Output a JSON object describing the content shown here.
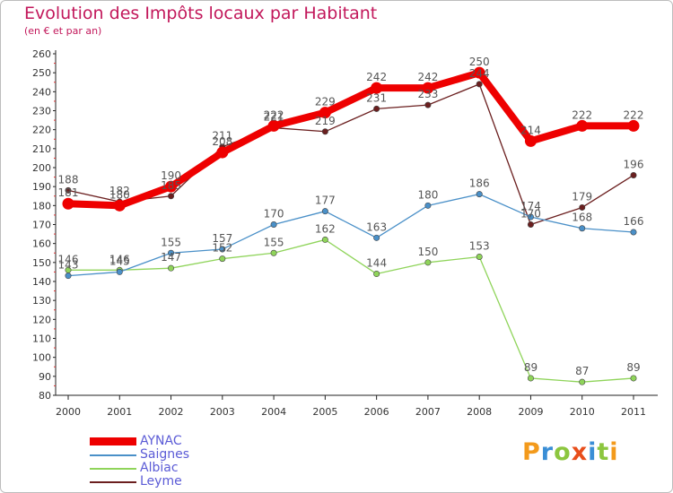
{
  "chart_data": {
    "type": "line",
    "title": "Evolution des Impôts locaux par Habitant",
    "subtitle": "(en € et par an)",
    "categories": [
      "2000",
      "2001",
      "2002",
      "2003",
      "2004",
      "2005",
      "2006",
      "2007",
      "2008",
      "2009",
      "2010",
      "2011"
    ],
    "ylim": [
      80,
      260
    ],
    "yticks": [
      "80",
      "90",
      "100",
      "110",
      "120",
      "130",
      "140",
      "150",
      "160",
      "170",
      "180",
      "190",
      "200",
      "210",
      "220",
      "230",
      "240",
      "250",
      "260"
    ],
    "grid": false,
    "legend_position": "bottom-left",
    "series": [
      {
        "name": "AYNAC",
        "values": [
          181,
          180,
          190,
          208,
          222,
          229,
          242,
          242,
          250,
          214,
          222,
          222
        ],
        "color": "#ee0000"
      },
      {
        "name": "Saignes",
        "values": [
          143,
          145,
          155,
          157,
          170,
          177,
          163,
          180,
          186,
          174,
          168,
          166
        ],
        "color": "#4a90c8"
      },
      {
        "name": "Albiac",
        "values": [
          146,
          146,
          147,
          152,
          155,
          162,
          144,
          150,
          153,
          89,
          87,
          89
        ],
        "color": "#8fd45a"
      },
      {
        "name": "Leyme",
        "values": [
          188,
          182,
          185,
          211,
          221,
          219,
          231,
          233,
          244,
          170,
          179,
          196
        ],
        "color": "#6b1f1f"
      }
    ]
  },
  "brand": {
    "letters": [
      "P",
      "r",
      "o",
      "x",
      "i",
      "t",
      "i"
    ],
    "colors": [
      "#f39a1c",
      "#3a8ed6",
      "#8cc63f",
      "#e84e1b",
      "#3a8ed6",
      "#8cc63f",
      "#f39a1c"
    ]
  }
}
